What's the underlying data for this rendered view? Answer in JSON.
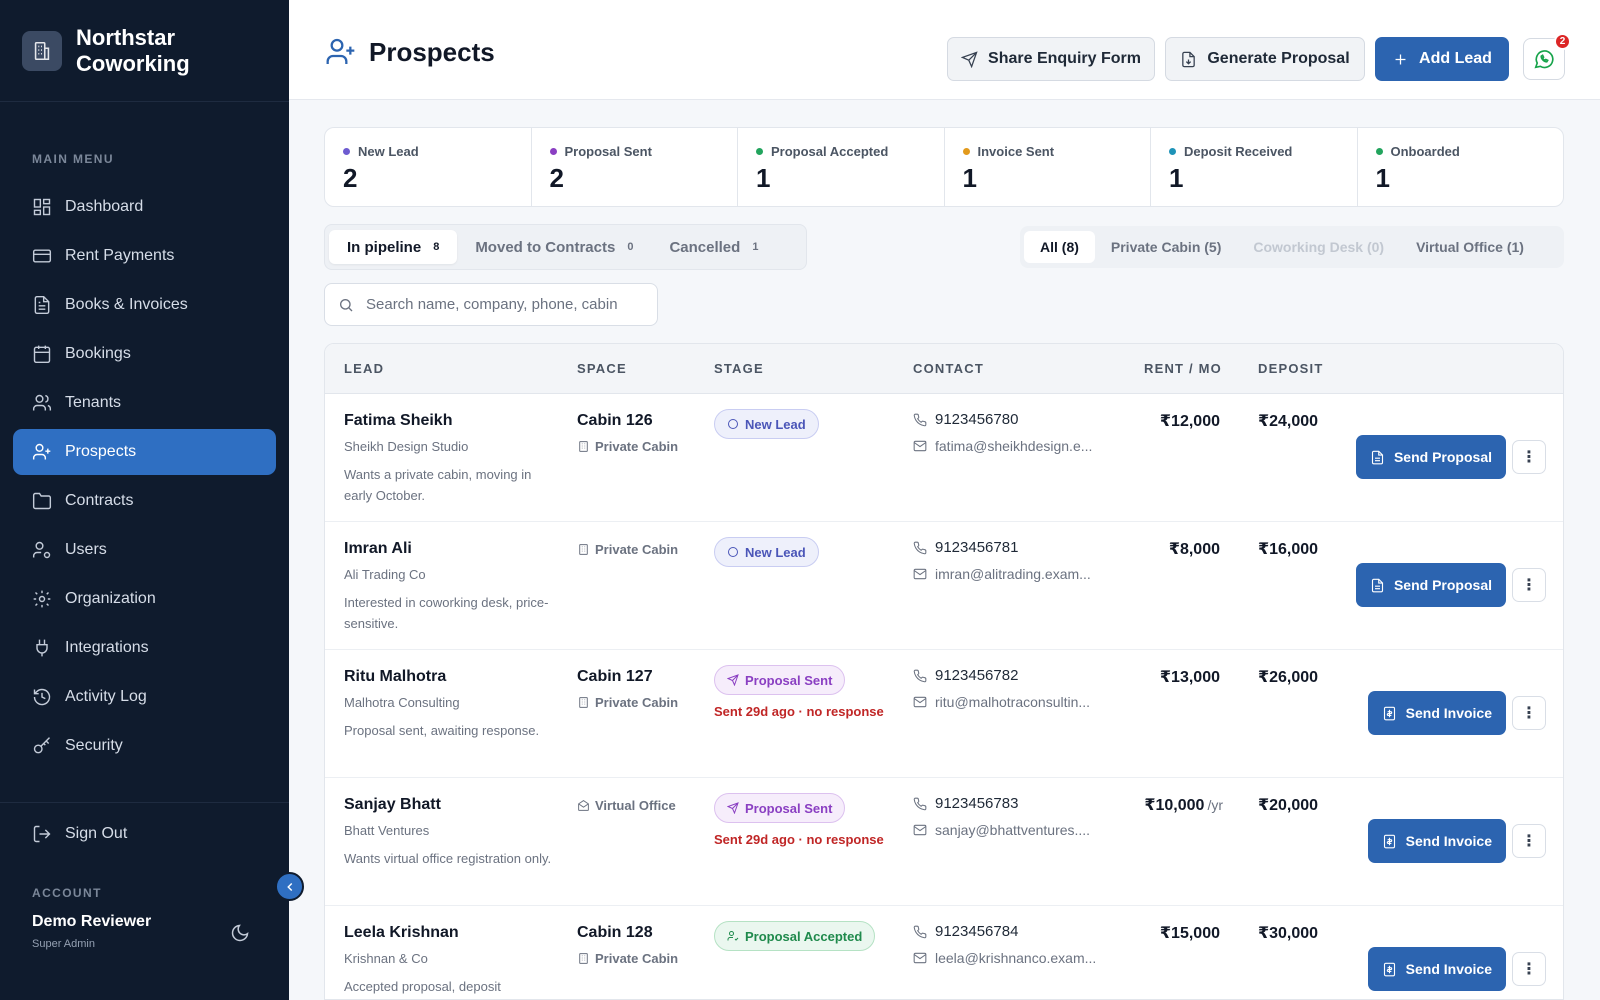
{
  "brand": {
    "name": "Northstar Coworking",
    "logo_icon": "building-icon"
  },
  "sidebar": {
    "heading": "MAIN MENU",
    "items": [
      {
        "label": "Dashboard",
        "icon": "dashboard-icon"
      },
      {
        "label": "Rent Payments",
        "icon": "card-icon"
      },
      {
        "label": "Books & Invoices",
        "icon": "document-icon"
      },
      {
        "label": "Bookings",
        "icon": "calendar-icon"
      },
      {
        "label": "Tenants",
        "icon": "users-icon"
      },
      {
        "label": "Prospects",
        "icon": "user-plus-icon",
        "active": true
      },
      {
        "label": "Contracts",
        "icon": "folder-icon"
      },
      {
        "label": "Users",
        "icon": "user-gear-icon"
      },
      {
        "label": "Organization",
        "icon": "gear-icon"
      },
      {
        "label": "Integrations",
        "icon": "plug-icon"
      },
      {
        "label": "Activity Log",
        "icon": "history-icon"
      },
      {
        "label": "Security",
        "icon": "key-icon"
      }
    ],
    "sign_out": "Sign Out",
    "account_heading": "ACCOUNT",
    "account_name": "Demo Reviewer",
    "account_role": "Super Admin"
  },
  "header": {
    "title": "Prospects",
    "share_label": "Share Enquiry Form",
    "generate_label": "Generate Proposal",
    "add_label": "Add Lead",
    "whatsapp_badge": "2"
  },
  "stats": [
    {
      "label": "New Lead",
      "value": "2",
      "color": "#6d5bd0"
    },
    {
      "label": "Proposal Sent",
      "value": "2",
      "color": "#8a3fc2"
    },
    {
      "label": "Proposal Accepted",
      "value": "1",
      "color": "#22a45d"
    },
    {
      "label": "Invoice Sent",
      "value": "1",
      "color": "#e29a1c"
    },
    {
      "label": "Deposit Received",
      "value": "1",
      "color": "#1e93b8"
    },
    {
      "label": "Onboarded",
      "value": "1",
      "color": "#22a45d"
    }
  ],
  "tabs": [
    {
      "label": "In pipeline",
      "count": "8",
      "active": true
    },
    {
      "label": "Moved to Contracts",
      "count": "0"
    },
    {
      "label": "Cancelled",
      "count": "1"
    }
  ],
  "filters": [
    {
      "label": "All (8)",
      "active": true
    },
    {
      "label": "Private Cabin (5)"
    },
    {
      "label": "Coworking Desk (0)",
      "disabled": true
    },
    {
      "label": "Virtual Office (1)"
    }
  ],
  "search": {
    "placeholder": "Search name, company, phone, cabin"
  },
  "table": {
    "columns": [
      "LEAD",
      "SPACE",
      "STAGE",
      "CONTACT",
      "RENT / MO",
      "DEPOSIT"
    ],
    "rows": [
      {
        "name": "Fatima Sheikh",
        "company": "Sheikh Design Studio",
        "note": "Wants a private cabin, moving in early October.",
        "cabin": "Cabin 126",
        "space": "Private Cabin",
        "stage": "New Lead",
        "stage_note": "",
        "phone": "9123456780",
        "email": "fatima@sheikhdesign.e...",
        "rent": "₹12,000",
        "rent_suffix": "",
        "deposit": "₹24,000",
        "action": "Send Proposal"
      },
      {
        "name": "Imran Ali",
        "company": "Ali Trading Co",
        "note": "Interested in coworking desk, price-sensitive.",
        "cabin": "",
        "space": "Private Cabin",
        "stage": "New Lead",
        "stage_note": "",
        "phone": "9123456781",
        "email": "imran@alitrading.exam...",
        "rent": "₹8,000",
        "rent_suffix": "",
        "deposit": "₹16,000",
        "action": "Send Proposal"
      },
      {
        "name": "Ritu Malhotra",
        "company": "Malhotra Consulting",
        "note": "Proposal sent, awaiting response.",
        "cabin": "Cabin 127",
        "space": "Private Cabin",
        "stage": "Proposal Sent",
        "stage_note": "Sent 29d ago · no response",
        "phone": "9123456782",
        "email": "ritu@malhotraconsultin...",
        "rent": "₹13,000",
        "rent_suffix": "",
        "deposit": "₹26,000",
        "action": "Send Invoice"
      },
      {
        "name": "Sanjay Bhatt",
        "company": "Bhatt Ventures",
        "note": "Wants virtual office registration only.",
        "cabin": "",
        "space": "Virtual Office",
        "stage": "Proposal Sent",
        "stage_note": "Sent 29d ago · no response",
        "phone": "9123456783",
        "email": "sanjay@bhattventures....",
        "rent": "₹10,000",
        "rent_suffix": "/yr",
        "deposit": "₹20,000",
        "action": "Send Invoice"
      },
      {
        "name": "Leela Krishnan",
        "company": "Krishnan & Co",
        "note": "Accepted proposal, deposit",
        "cabin": "Cabin 128",
        "space": "Private Cabin",
        "stage": "Proposal Accepted",
        "stage_note": "",
        "phone": "9123456784",
        "email": "leela@krishnanco.exam...",
        "rent": "₹15,000",
        "rent_suffix": "",
        "deposit": "₹30,000",
        "action": "Send Invoice"
      }
    ]
  }
}
